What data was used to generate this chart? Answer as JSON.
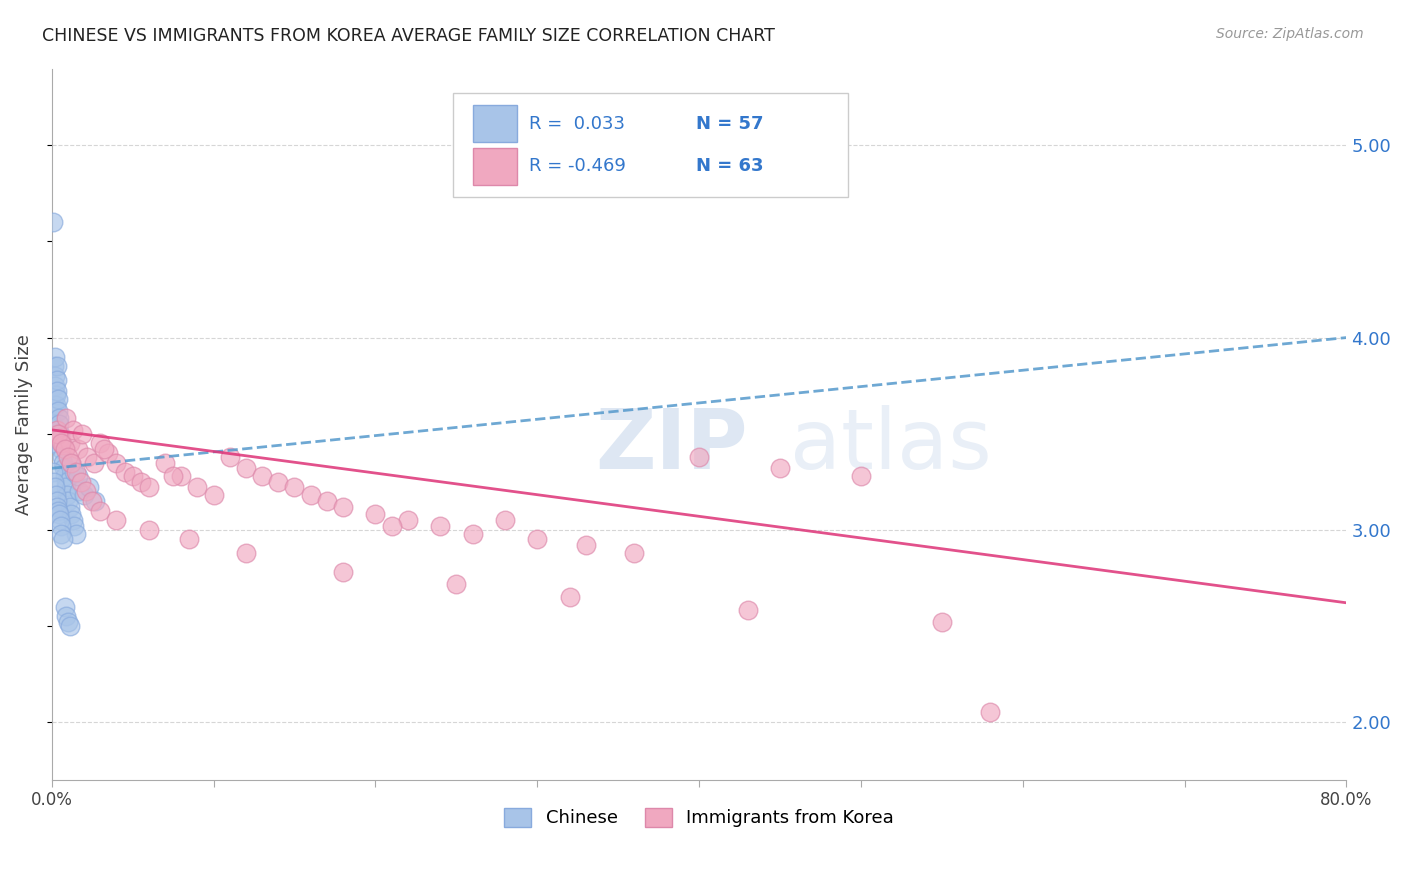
{
  "title": "CHINESE VS IMMIGRANTS FROM KOREA AVERAGE FAMILY SIZE CORRELATION CHART",
  "source": "Source: ZipAtlas.com",
  "ylabel": "Average Family Size",
  "right_yticks": [
    2.0,
    3.0,
    4.0,
    5.0
  ],
  "right_yticklabels": [
    "2.00",
    "3.00",
    "4.00",
    "5.00"
  ],
  "legend_r1": "R =  0.033",
  "legend_n1": "N = 57",
  "legend_r2": "R = -0.469",
  "legend_n2": "N = 63",
  "chinese_color": "#a8c4e8",
  "china_edge_color": "#88aadd",
  "korea_color": "#f0a8c0",
  "korea_edge_color": "#dd88aa",
  "trend_blue_color": "#5599cc",
  "trend_pink_color": "#dd3377",
  "grid_color": "#cccccc",
  "title_color": "#222222",
  "source_color": "#999999",
  "rn_color": "#3377cc",
  "label_color": "#444444",
  "ylim": [
    1.7,
    5.4
  ],
  "xlim": [
    0,
    80
  ],
  "trend_blue_y0": 3.32,
  "trend_blue_y1": 4.0,
  "trend_pink_y0": 3.52,
  "trend_pink_y1": 2.62,
  "chinese_x": [
    0.05,
    0.08,
    0.1,
    0.12,
    0.15,
    0.18,
    0.2,
    0.22,
    0.25,
    0.28,
    0.3,
    0.32,
    0.35,
    0.38,
    0.4,
    0.42,
    0.45,
    0.48,
    0.5,
    0.55,
    0.6,
    0.65,
    0.7,
    0.75,
    0.8,
    0.85,
    0.9,
    0.95,
    1.0,
    1.1,
    1.2,
    1.3,
    1.4,
    1.5,
    1.7,
    2.0,
    2.3,
    2.7,
    0.1,
    0.15,
    0.2,
    0.25,
    0.3,
    0.35,
    0.4,
    0.45,
    0.5,
    0.55,
    0.6,
    0.7,
    0.8,
    0.9,
    1.0,
    1.1,
    1.2,
    1.4,
    1.6
  ],
  "chinese_y": [
    4.6,
    3.55,
    3.45,
    3.65,
    3.85,
    3.9,
    3.8,
    3.75,
    3.7,
    3.65,
    3.85,
    3.78,
    3.72,
    3.68,
    3.62,
    3.58,
    3.55,
    3.5,
    3.48,
    3.45,
    3.42,
    3.38,
    3.35,
    3.32,
    3.28,
    3.25,
    3.22,
    3.18,
    3.15,
    3.12,
    3.08,
    3.05,
    3.02,
    2.98,
    3.2,
    3.18,
    3.22,
    3.15,
    3.3,
    3.25,
    3.22,
    3.18,
    3.15,
    3.12,
    3.1,
    3.08,
    3.05,
    3.02,
    2.98,
    2.95,
    2.6,
    2.55,
    2.52,
    2.5,
    3.35,
    3.3,
    3.28
  ],
  "korea_x": [
    0.3,
    0.5,
    0.7,
    0.9,
    1.1,
    1.3,
    1.6,
    1.9,
    2.2,
    2.6,
    3.0,
    3.5,
    4.0,
    4.5,
    5.0,
    5.5,
    6.0,
    7.0,
    8.0,
    9.0,
    10.0,
    11.0,
    12.0,
    13.0,
    14.0,
    15.0,
    16.0,
    17.0,
    18.0,
    20.0,
    22.0,
    24.0,
    26.0,
    28.0,
    30.0,
    33.0,
    36.0,
    40.0,
    45.0,
    50.0,
    0.4,
    0.6,
    0.8,
    1.0,
    1.2,
    1.5,
    1.8,
    2.1,
    2.5,
    3.0,
    4.0,
    6.0,
    8.5,
    12.0,
    18.0,
    25.0,
    32.0,
    43.0,
    55.0,
    3.2,
    7.5,
    21.0,
    58.0
  ],
  "korea_y": [
    3.52,
    3.48,
    3.44,
    3.58,
    3.45,
    3.52,
    3.42,
    3.5,
    3.38,
    3.35,
    3.45,
    3.4,
    3.35,
    3.3,
    3.28,
    3.25,
    3.22,
    3.35,
    3.28,
    3.22,
    3.18,
    3.38,
    3.32,
    3.28,
    3.25,
    3.22,
    3.18,
    3.15,
    3.12,
    3.08,
    3.05,
    3.02,
    2.98,
    3.05,
    2.95,
    2.92,
    2.88,
    3.38,
    3.32,
    3.28,
    3.5,
    3.45,
    3.42,
    3.38,
    3.35,
    3.3,
    3.25,
    3.2,
    3.15,
    3.1,
    3.05,
    3.0,
    2.95,
    2.88,
    2.78,
    2.72,
    2.65,
    2.58,
    2.52,
    3.42,
    3.28,
    3.02,
    2.05
  ]
}
